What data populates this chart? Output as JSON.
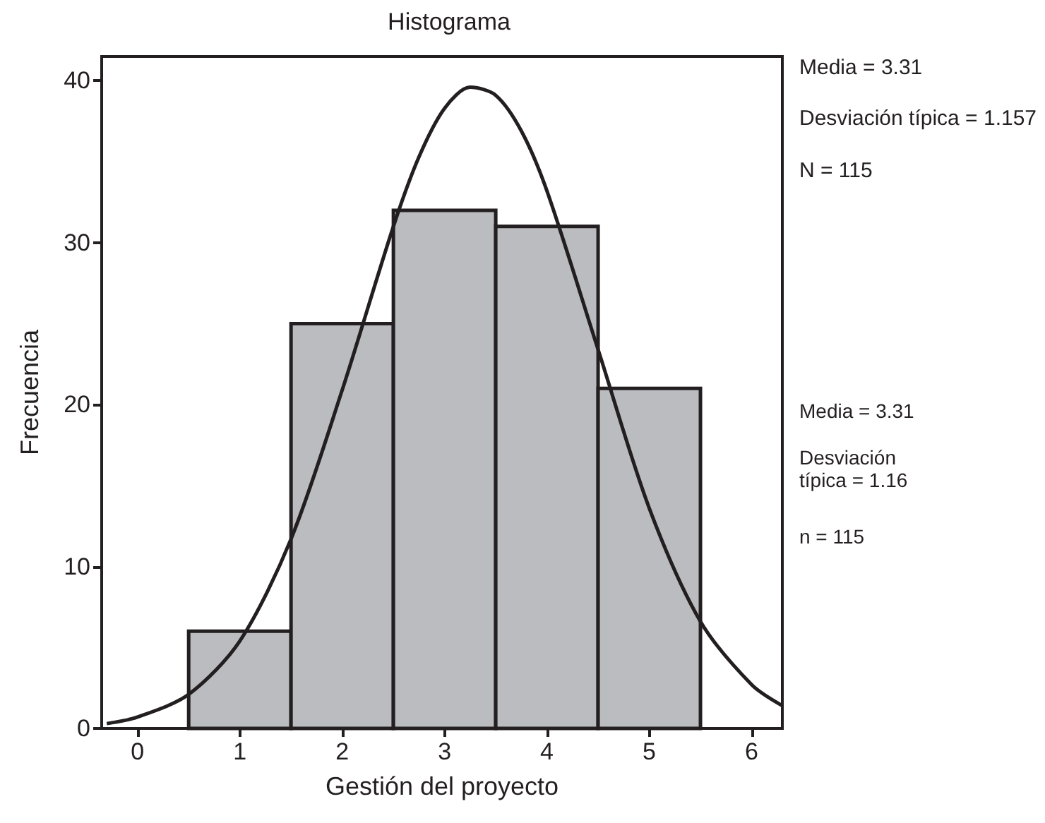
{
  "chart_data": {
    "type": "histogram",
    "title": "Histograma",
    "xlabel": "Gestión del proyecto",
    "ylabel": "Frecuencia",
    "xlim": [
      -0.35,
      6.3
    ],
    "xticks": [
      0,
      1,
      2,
      3,
      4,
      5,
      6
    ],
    "ylim": [
      0,
      41.5
    ],
    "yticks": [
      0,
      10,
      20,
      30,
      40
    ],
    "series": [
      {
        "type": "histogram",
        "color": "#bbbcc0",
        "bins": [
          0.5,
          1.5,
          2.5,
          3.5,
          4.5,
          5.5
        ],
        "values": [
          6,
          25,
          32,
          31,
          21
        ]
      },
      {
        "type": "line",
        "color": "#231f20",
        "marker": "none",
        "line_style": "solid",
        "x": [
          -0.3,
          0,
          0.5,
          1,
          1.5,
          2,
          2.5,
          2.75,
          3,
          3.25,
          3.5,
          3.75,
          4,
          4.5,
          5,
          5.5,
          6,
          6.3
        ],
        "values": [
          0.3,
          0.7,
          2.1,
          5.4,
          11.7,
          20.9,
          31.0,
          35.3,
          38.3,
          39.6,
          39.1,
          36.9,
          33.2,
          23.4,
          13.6,
          6.6,
          2.7,
          1.4
        ]
      }
    ],
    "annotations": [
      "Media = 3.31",
      "Desviación típica = 1.157",
      "N = 115",
      "Media = 3.31",
      "Desviación típica = 1.16",
      "n = 115"
    ]
  }
}
